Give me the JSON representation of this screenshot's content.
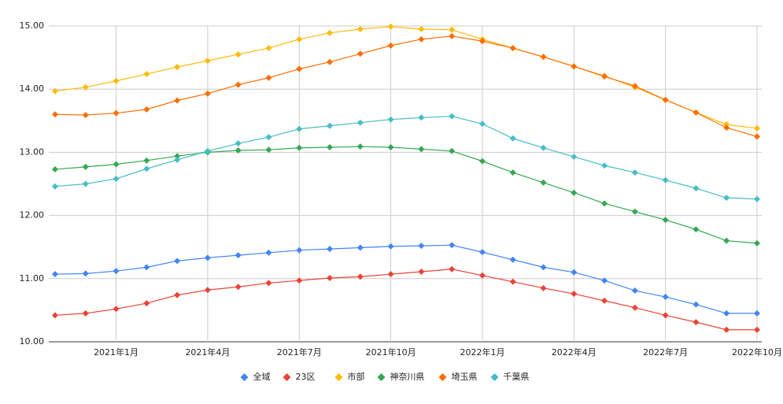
{
  "chart_data": {
    "type": "line",
    "categories": [
      null,
      null,
      "2021年1月",
      null,
      null,
      "2021年4月",
      null,
      null,
      "2021年7月",
      null,
      null,
      "2021年10月",
      null,
      null,
      "2022年1月",
      null,
      null,
      "2022年4月",
      null,
      null,
      "2022年7月",
      null,
      null,
      "2022年10月"
    ],
    "ylim": [
      10,
      15
    ],
    "yticks": [
      {
        "value": 10,
        "label": "10.00"
      },
      {
        "value": 11,
        "label": "11.00"
      },
      {
        "value": 12,
        "label": "12.00"
      },
      {
        "value": 13,
        "label": "13.00"
      },
      {
        "value": 14,
        "label": "14.00"
      },
      {
        "value": 15,
        "label": "15.00"
      }
    ],
    "grid": true,
    "legend": "bottom",
    "series": [
      {
        "name": "全域",
        "color": "#4285f4",
        "values": [
          11.07,
          11.08,
          11.12,
          11.18,
          11.28,
          11.33,
          11.37,
          11.41,
          11.45,
          11.47,
          11.49,
          11.51,
          11.52,
          11.53,
          11.42,
          11.3,
          11.18,
          11.1,
          10.97,
          10.81,
          10.71,
          10.59,
          10.45,
          10.45
        ]
      },
      {
        "name": "23区",
        "color": "#ea4335",
        "values": [
          10.42,
          10.45,
          10.52,
          10.61,
          10.74,
          10.82,
          10.87,
          10.93,
          10.97,
          11.01,
          11.03,
          11.07,
          11.11,
          11.15,
          11.05,
          10.95,
          10.85,
          10.76,
          10.65,
          10.54,
          10.42,
          10.31,
          10.19,
          10.19
        ]
      },
      {
        "name": "市部",
        "color": "#fbbc04",
        "values": [
          13.97,
          14.03,
          14.13,
          14.24,
          14.35,
          14.45,
          14.55,
          14.65,
          14.79,
          14.89,
          14.95,
          14.99,
          14.95,
          14.94,
          14.79,
          14.65,
          14.51,
          14.36,
          14.21,
          14.03,
          13.83,
          13.63,
          13.44,
          13.38
        ]
      },
      {
        "name": "神奈川県",
        "color": "#34a853",
        "values": [
          12.73,
          12.77,
          12.81,
          12.87,
          12.94,
          13.0,
          13.03,
          13.04,
          13.07,
          13.08,
          13.09,
          13.08,
          13.05,
          13.02,
          12.86,
          12.68,
          12.52,
          12.36,
          12.19,
          12.06,
          11.93,
          11.78,
          11.6,
          11.56
        ]
      },
      {
        "name": "埼玉県",
        "color": "#ff6d01",
        "values": [
          13.6,
          13.59,
          13.62,
          13.68,
          13.82,
          13.93,
          14.07,
          14.18,
          14.32,
          14.43,
          14.56,
          14.69,
          14.79,
          14.84,
          14.76,
          14.65,
          14.51,
          14.36,
          14.2,
          14.05,
          13.83,
          13.63,
          13.39,
          13.25
        ]
      },
      {
        "name": "千葉県",
        "color": "#46bdc6",
        "values": [
          12.46,
          12.5,
          12.58,
          12.74,
          12.88,
          13.02,
          13.14,
          13.24,
          13.37,
          13.42,
          13.47,
          13.52,
          13.55,
          13.57,
          13.45,
          13.22,
          13.07,
          12.93,
          12.79,
          12.68,
          12.56,
          12.43,
          12.28,
          12.26
        ]
      }
    ]
  }
}
